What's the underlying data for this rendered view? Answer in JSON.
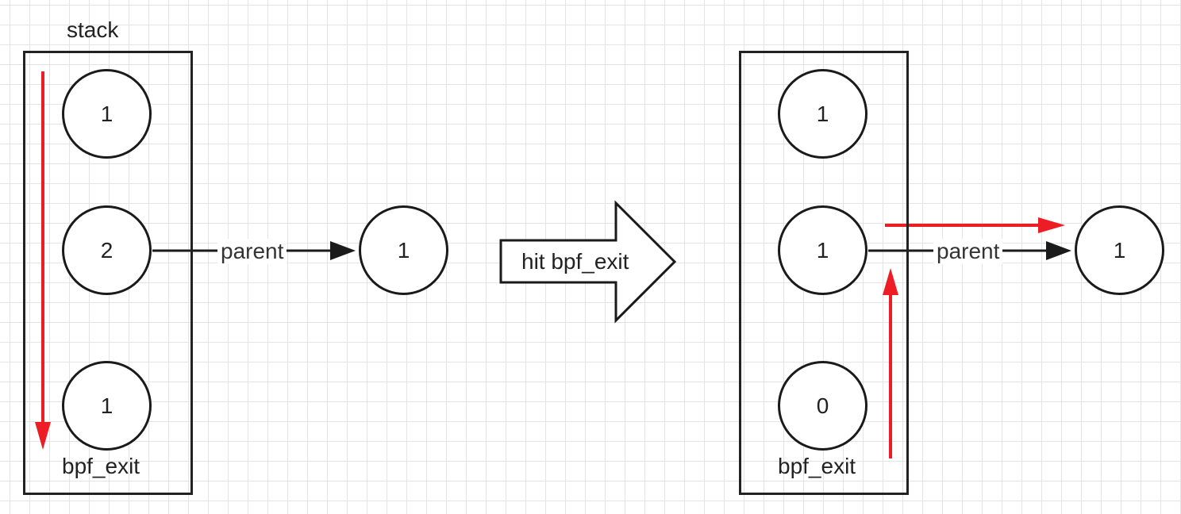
{
  "left_stack": {
    "title": "stack",
    "nodes": [
      "1",
      "2",
      "1"
    ],
    "exit_label": "bpf_exit",
    "parent_label": "parent",
    "parent_node": "1"
  },
  "transition": {
    "label": "hit bpf_exit"
  },
  "right_stack": {
    "nodes": [
      "1",
      "1",
      "0"
    ],
    "exit_label": "bpf_exit",
    "parent_label": "parent",
    "parent_node": "1"
  },
  "colors": {
    "line": "#1a1a1a",
    "highlight": "#ee1c24"
  }
}
